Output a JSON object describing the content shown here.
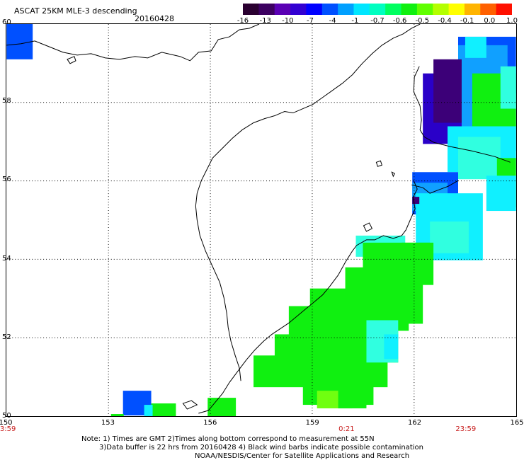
{
  "header": {
    "title": "ASCAT 25KM MLE-3 descending",
    "date": "20160428"
  },
  "colorbar": {
    "labels": [
      "-16",
      "-13",
      "-10",
      "-7",
      "-4",
      "-1",
      "-0.7",
      "-0.6",
      "-0.5",
      "-0.4",
      "-0.1",
      "0.0",
      "1.0"
    ],
    "colors": [
      "#2a0030",
      "#3c0060",
      "#5a00b4",
      "#3200d2",
      "#0000ff",
      "#0050ff",
      "#00a0ff",
      "#00e6ff",
      "#00ffc0",
      "#00ff60",
      "#10f010",
      "#60ff00",
      "#b4ff00",
      "#ffff00",
      "#ffb400",
      "#ff6000",
      "#ff1000"
    ]
  },
  "map": {
    "lat_labels": [
      "60",
      "58",
      "56",
      "54",
      "52",
      "50"
    ],
    "lat_values": [
      60,
      58,
      56,
      54,
      52,
      50
    ],
    "lon_labels": [
      "150",
      "153",
      "156",
      "159",
      "162",
      "165"
    ],
    "lon_values": [
      150,
      153,
      156,
      159,
      162,
      165
    ],
    "time_labels": [
      {
        "text": "23:59",
        "lon": 150
      },
      {
        "text": "0:21",
        "lon": 160
      },
      {
        "text": "23:59",
        "lon": 163.5
      }
    ],
    "colors": {
      "dark_purple": "#3c0078",
      "navy": "#2a00c8",
      "blue": "#0050ff",
      "sky": "#10a0ff",
      "cyan": "#10f0ff",
      "aqua": "#30ffe0",
      "green": "#10f010",
      "lime": "#70ff10"
    }
  },
  "footer": {
    "line1": "Note: 1) Times are GMT 2)Times along bottom correspond to measurement at 55N",
    "line2": "3)Data buffer is 22 hrs from 20160428 4) Black wind barbs indicate possible contamination",
    "line3": "NOAA/NESDIS/Center for Satellite Applications and Research"
  }
}
